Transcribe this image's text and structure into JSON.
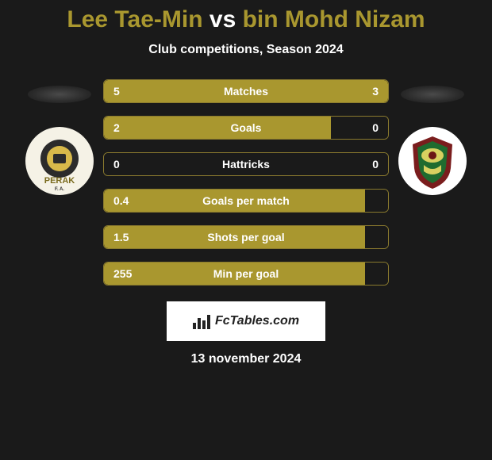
{
  "title": {
    "player1": "Lee Tae-Min",
    "vs": "vs",
    "player2": "bin Mohd Nizam",
    "color1": "#a9972f",
    "colorVs": "#ffffff",
    "color2": "#a9972f"
  },
  "subtitle": "Club competitions, Season 2024",
  "colors": {
    "barFillLeft": "#a9972f",
    "barFillRight": "#a9972f",
    "barBorder": "#8a7a2e",
    "background": "#1a1a1a",
    "textOnFill": "#ffffff",
    "labelColor": "#ffffff",
    "brandBox": "#ffffff"
  },
  "bars": [
    {
      "label": "Matches",
      "left": "5",
      "right": "3",
      "leftPct": 62.5,
      "rightPct": 37.5
    },
    {
      "label": "Goals",
      "left": "2",
      "right": "0",
      "leftPct": 80,
      "rightPct": 0
    },
    {
      "label": "Hattricks",
      "left": "0",
      "right": "0",
      "leftPct": 0,
      "rightPct": 0
    },
    {
      "label": "Goals per match",
      "left": "0.4",
      "right": "",
      "leftPct": 92,
      "rightPct": 0
    },
    {
      "label": "Shots per goal",
      "left": "1.5",
      "right": "",
      "leftPct": 92,
      "rightPct": 0
    },
    {
      "label": "Min per goal",
      "left": "255",
      "right": "",
      "leftPct": 92,
      "rightPct": 0
    }
  ],
  "brand": "FcTables.com",
  "date": "13 november 2024",
  "team1": {
    "badgeBg": "#f5f2e6",
    "inner": "#2b2b2b",
    "label": "PERAK",
    "labelColor": "#f3d24a",
    "sub": "F. A.",
    "subColor": "#2b2b2b"
  },
  "team2": {
    "badgeBg": "#ffffff",
    "shieldOuter": "#7a1d1d",
    "shieldInner": "#1f6b2f",
    "shieldAccent": "#d8d060"
  }
}
